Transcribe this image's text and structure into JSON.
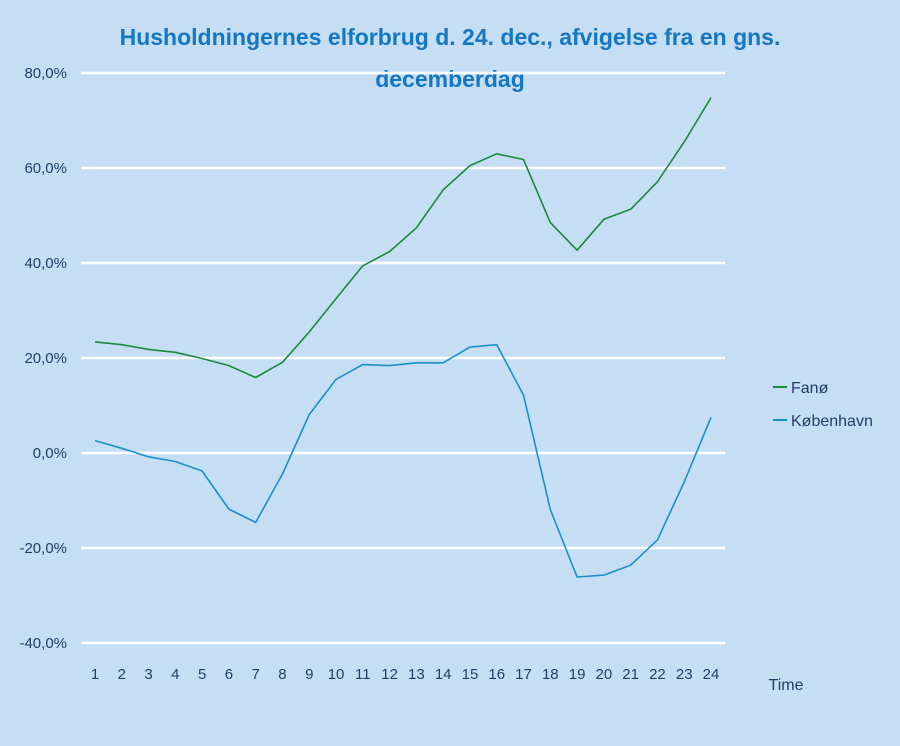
{
  "chart_data": {
    "type": "line",
    "title_lines": [
      "Husholdningernes elforbrug d. 24. dec., afvigelse fra en gns.",
      "decemberdag"
    ],
    "xlabel": "Time",
    "ylabel": "",
    "x": [
      "1",
      "2",
      "3",
      "4",
      "5",
      "6",
      "7",
      "8",
      "9",
      "10",
      "11",
      "12",
      "13",
      "14",
      "15",
      "16",
      "17",
      "18",
      "19",
      "20",
      "21",
      "22",
      "23",
      "24"
    ],
    "y_ticks": [
      "-40,0%",
      "-20,0%",
      "0,0%",
      "20,0%",
      "40,0%",
      "60,0%",
      "80,0%"
    ],
    "ylim": [
      -40,
      80
    ],
    "grid": "horizontal",
    "legend_position": "right",
    "series": [
      {
        "name": "Fanø",
        "color": "#1a8a3c",
        "values": [
          23.4,
          22.8,
          21.8,
          21.2,
          19.9,
          18.4,
          15.9,
          19.1,
          25.5,
          32.5,
          39.4,
          42.4,
          47.4,
          55.4,
          60.5,
          63.0,
          61.8,
          48.5,
          42.7,
          49.2,
          51.3,
          57.1,
          65.5,
          74.8
        ]
      },
      {
        "name": "København",
        "color": "#1a90c8",
        "values": [
          2.6,
          1.0,
          -0.8,
          -1.8,
          -3.8,
          -11.8,
          -14.6,
          -4.4,
          8.1,
          15.5,
          18.6,
          18.4,
          19.0,
          19.0,
          22.3,
          22.8,
          12.2,
          -11.9,
          -26.1,
          -25.7,
          -23.6,
          -18.3,
          -6.1,
          7.5
        ]
      }
    ]
  }
}
